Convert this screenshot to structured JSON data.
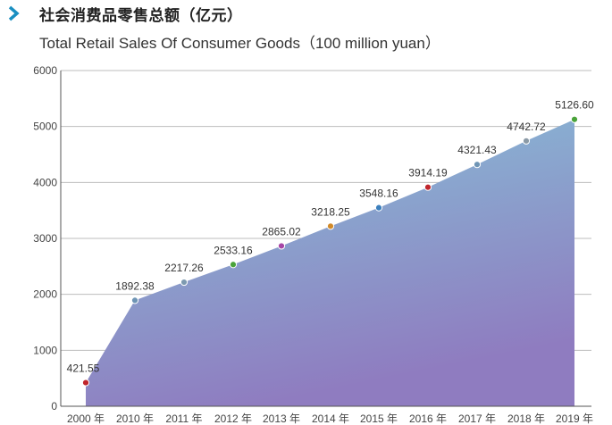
{
  "header": {
    "icon": "chevron-right-icon",
    "title_cn": "社会消费品零售总额（亿元）",
    "title_en": "Total Retail Sales Of Consumer Goods（100 million yuan）"
  },
  "colors": {
    "accent": "#1a8fc1",
    "area_top": "#86c3d8",
    "area_bottom": "#8f7cc0",
    "grid": "#bdbdbd"
  },
  "chart_data": {
    "type": "area",
    "title": "社会消费品零售总额（亿元）",
    "subtitle": "Total Retail Sales Of Consumer Goods（100 million yuan）",
    "categories": [
      "2000 年",
      "2010 年",
      "2011 年",
      "2012 年",
      "2013 年",
      "2014 年",
      "2015 年",
      "2016 年",
      "2017 年",
      "2018 年",
      "2019 年"
    ],
    "values": [
      421.55,
      1892.38,
      2217.26,
      2533.16,
      2865.02,
      3218.25,
      3548.16,
      3914.19,
      4321.43,
      4742.72,
      5126.6
    ],
    "labels": [
      "421.55",
      "1892.38",
      "2217.26",
      "2533.16",
      "2865.02",
      "3218.25",
      "3548.16",
      "3914.19",
      "4321.43",
      "4742.72",
      "5126.60"
    ],
    "marker_colors": [
      "#c0262c",
      "#6f95b5",
      "#7d9ab0",
      "#4aa33a",
      "#a646a6",
      "#d18a2a",
      "#3d80bd",
      "#c0262c",
      "#6f95b5",
      "#8b9aa6",
      "#4aa33a"
    ],
    "ylim": [
      0,
      6000
    ],
    "yticks": [
      0,
      1000,
      2000,
      3000,
      4000,
      5000,
      6000
    ],
    "grid": true,
    "xlabel": "",
    "ylabel": ""
  }
}
